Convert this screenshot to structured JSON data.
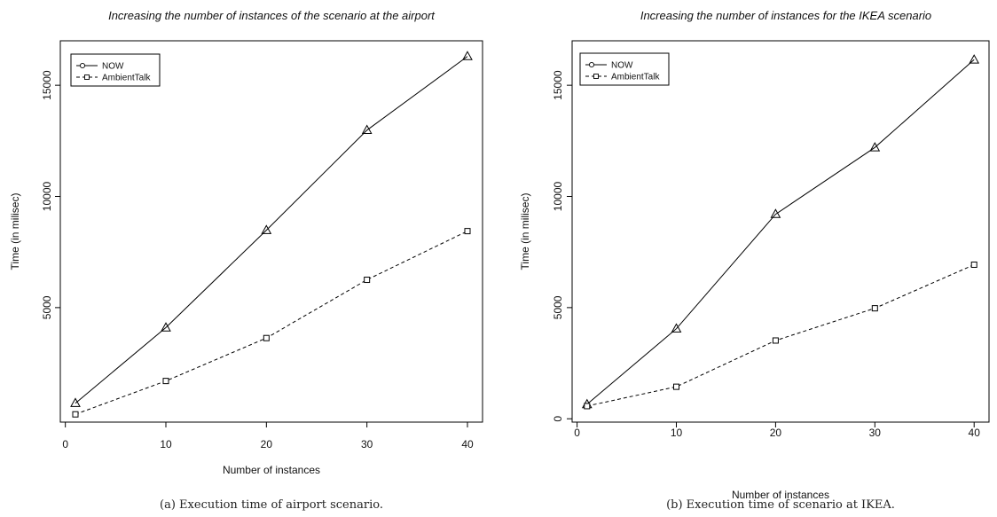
{
  "chart_data": [
    {
      "type": "line",
      "title": "Increasing the number of instances of the scenario at the airport",
      "xlabel": "Number of instances",
      "ylabel": "Time (in milisec)",
      "caption": "(a) Execution time of airport scenario.",
      "x_ticks": [
        "0",
        "10",
        "20",
        "30",
        "40"
      ],
      "y_ticks": [
        "5000",
        "10000",
        "15000"
      ],
      "xlim": [
        -0.5,
        41.5
      ],
      "ylim": [
        -150,
        17000
      ],
      "legend": [
        "NOW",
        "AmbientTalk"
      ],
      "legend_position": "top-left",
      "grid": false,
      "x": [
        1,
        10,
        20,
        30,
        40
      ],
      "series": [
        {
          "name": "NOW",
          "values": [
            700,
            4100,
            8480,
            12980,
            16300
          ],
          "marker": "triangle",
          "line": "solid"
        },
        {
          "name": "AmbientTalk",
          "values": [
            200,
            1700,
            3630,
            6250,
            8440
          ],
          "marker": "square",
          "line": "dashed"
        }
      ]
    },
    {
      "type": "line",
      "title": "Increasing the number of instances for the IKEA scenario",
      "xlabel": "Number of instances",
      "ylabel": "Time (in milisec)",
      "caption": "(b) Execution time of scenario at IKEA.",
      "x_ticks": [
        "0",
        "10",
        "20",
        "30",
        "40"
      ],
      "y_ticks": [
        "0",
        "5000",
        "10000",
        "15000"
      ],
      "xlim": [
        -0.5,
        41.5
      ],
      "ylim": [
        -150,
        17000
      ],
      "legend": [
        "NOW",
        "AmbientTalk"
      ],
      "legend_position": "top-left",
      "grid": false,
      "x": [
        1,
        10,
        20,
        30,
        40
      ],
      "series": [
        {
          "name": "NOW",
          "values": [
            650,
            4050,
            9200,
            12200,
            16150
          ],
          "marker": "triangle",
          "line": "solid"
        },
        {
          "name": "AmbientTalk",
          "values": [
            570,
            1440,
            3520,
            4970,
            6930
          ],
          "marker": "square",
          "line": "dashed"
        }
      ]
    }
  ]
}
